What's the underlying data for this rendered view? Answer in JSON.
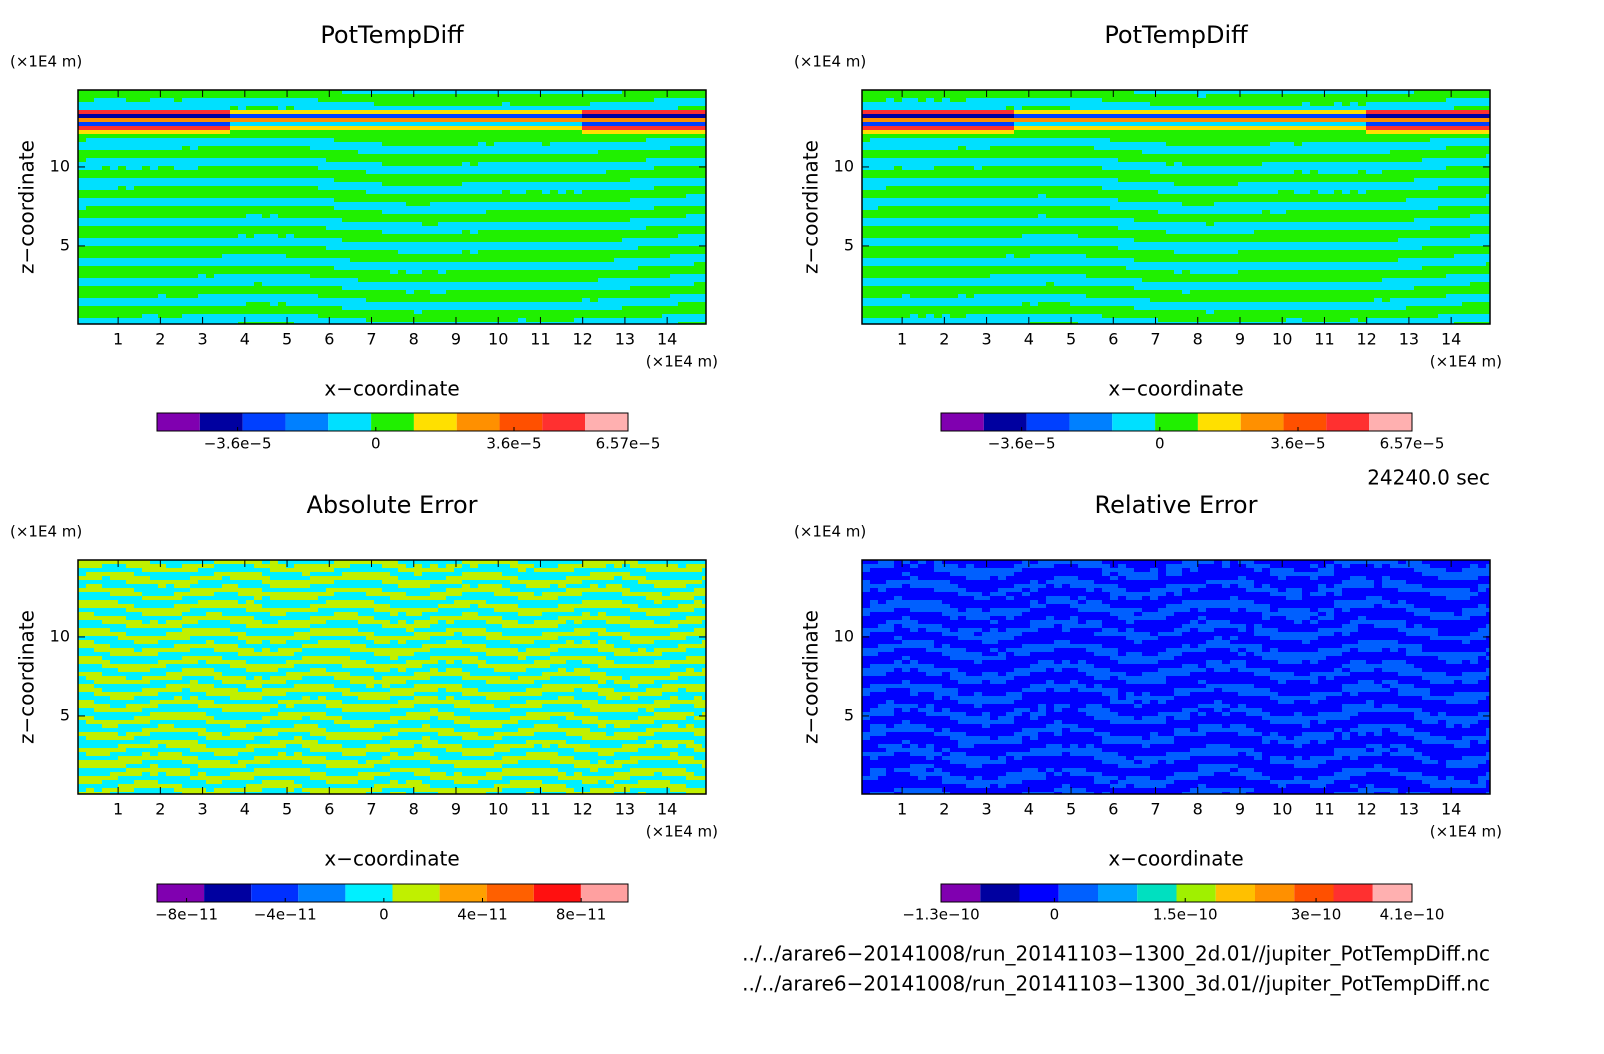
{
  "chart_data": [
    {
      "type": "contour",
      "title": "PotTempDiff",
      "xlabel": "x−coordinate",
      "ylabel": "z−coordinate",
      "x_unit": "(×1E4 m)",
      "y_unit": "(×1E4 m)",
      "xlim": [
        0.05,
        14.92
      ],
      "ylim": [
        0.06,
        14.87
      ],
      "xticks": [
        1,
        2,
        3,
        4,
        5,
        6,
        7,
        8,
        9,
        10,
        11,
        12,
        13,
        14
      ],
      "yticks": [
        5,
        10
      ],
      "colorbar": {
        "colors": [
          "#8000b0",
          "#0000a0",
          "#0040ff",
          "#0080ff",
          "#00e0ff",
          "#20f000",
          "#ffe000",
          "#ff9000",
          "#ff5000",
          "#ff3030",
          "#ffb0b0"
        ],
        "lim": [
          -5.7e-05,
          6.57e-05
        ],
        "ticks": [
          {
            "value": -3.6e-05,
            "label": "−3.6e−5"
          },
          0,
          {
            "value": 3.6e-05,
            "label": "3.6e−5"
          },
          {
            "value": 6.57e-05,
            "label": "6.57e−5"
          }
        ]
      }
    },
    {
      "type": "contour",
      "title": "PotTempDiff",
      "xlabel": "x−coordinate",
      "ylabel": "z−coordinate",
      "x_unit": "(×1E4 m)",
      "y_unit": "(×1E4 m)",
      "xlim": [
        0.05,
        14.92
      ],
      "ylim": [
        0.06,
        14.87
      ],
      "xticks": [
        1,
        2,
        3,
        4,
        5,
        6,
        7,
        8,
        9,
        10,
        11,
        12,
        13,
        14
      ],
      "yticks": [
        5,
        10
      ],
      "colorbar": {
        "colors": [
          "#8000b0",
          "#0000a0",
          "#0040ff",
          "#0080ff",
          "#00e0ff",
          "#20f000",
          "#ffe000",
          "#ff9000",
          "#ff5000",
          "#ff3030",
          "#ffb0b0"
        ],
        "lim": [
          -5.7e-05,
          6.57e-05
        ],
        "ticks": [
          {
            "value": -3.6e-05,
            "label": "−3.6e−5"
          },
          0,
          {
            "value": 3.6e-05,
            "label": "3.6e−5"
          },
          {
            "value": 6.57e-05,
            "label": "6.57e−5"
          }
        ]
      }
    },
    {
      "type": "contour",
      "title": "Absolute Error",
      "xlabel": "x−coordinate",
      "ylabel": "z−coordinate",
      "x_unit": "(×1E4 m)",
      "y_unit": "(×1E4 m)",
      "xlim": [
        0.05,
        14.92
      ],
      "ylim": [
        0.06,
        14.87
      ],
      "xticks": [
        1,
        2,
        3,
        4,
        5,
        6,
        7,
        8,
        9,
        10,
        11,
        12,
        13,
        14
      ],
      "yticks": [
        5,
        10
      ],
      "colorbar": {
        "colors": [
          "#8000b0",
          "#0000a0",
          "#0030ff",
          "#0080ff",
          "#00f0ff",
          "#c0f000",
          "#ffa000",
          "#ff6000",
          "#ff1010",
          "#ffa0a0"
        ],
        "lim": [
          -9.2e-11,
          9.9e-11
        ],
        "ticks": [
          {
            "value": -8e-11,
            "label": "−8e−11"
          },
          {
            "value": -4e-11,
            "label": "−4e−11"
          },
          0,
          {
            "value": 4e-11,
            "label": "4e−11"
          },
          {
            "value": 8e-11,
            "label": "8e−11"
          }
        ]
      }
    },
    {
      "type": "contour",
      "title": "Relative Error",
      "xlabel": "x−coordinate",
      "ylabel": "z−coordinate",
      "x_unit": "(×1E4 m)",
      "y_unit": "(×1E4 m)",
      "xlim": [
        0.05,
        14.92
      ],
      "ylim": [
        0.06,
        14.87
      ],
      "xticks": [
        1,
        2,
        3,
        4,
        5,
        6,
        7,
        8,
        9,
        10,
        11,
        12,
        13,
        14
      ],
      "yticks": [
        5,
        10
      ],
      "colorbar": {
        "colors": [
          "#8000b0",
          "#0000a0",
          "#0000ff",
          "#0060ff",
          "#00a0ff",
          "#00e0c0",
          "#a0f000",
          "#ffc000",
          "#ff9000",
          "#ff5000",
          "#ff3030",
          "#ffb0b0"
        ],
        "lim": [
          -1.3e-10,
          4.1e-10
        ],
        "ticks": [
          {
            "value": -1.3e-10,
            "label": "−1.3e−10"
          },
          0,
          {
            "value": 1.5e-10,
            "label": "1.5e−10"
          },
          {
            "value": 3e-10,
            "label": "3e−10"
          },
          {
            "value": 4.1e-10,
            "label": "4.1e−10"
          }
        ]
      }
    }
  ],
  "annotations": {
    "time": "24240.0 sec",
    "files": [
      "../../arare6−20141008/run_20141103−1300_2d.01//jupiter_PotTempDiff.nc",
      "../../arare6−20141008/run_20141103−1300_3d.01//jupiter_PotTempDiff.nc"
    ]
  }
}
